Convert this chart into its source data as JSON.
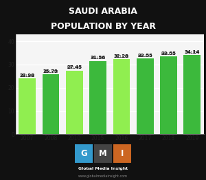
{
  "title_line1": "SAUDI ARABIA",
  "title_line2": "POPULATION BY YEAR",
  "categories": [
    "2007",
    "2008",
    "2010",
    "2015",
    "2016",
    "2017",
    "2018",
    "2019"
  ],
  "values": [
    23.98,
    25.79,
    27.45,
    31.56,
    32.28,
    32.55,
    33.55,
    34.14
  ],
  "value_labels": [
    "23.98",
    "25.79",
    "27.45",
    "31.56",
    "32.28",
    "32.55",
    "33.55",
    "34.14"
  ],
  "bar_colors": [
    "#90EE50",
    "#3CB93C",
    "#90EE50",
    "#3CB93C",
    "#90EE50",
    "#3CB93C",
    "#3CB93C",
    "#3CB93C"
  ],
  "title_bg_color": "#0d3320",
  "title_text_color": "#ffffff",
  "chart_bg_color": "#f5f5f5",
  "footer_bg_color": "#111111",
  "gmi_g_color": "#3399CC",
  "gmi_m_color": "#444444",
  "gmi_i_color": "#CC6622",
  "ylim": [
    0,
    43
  ],
  "yticks": [
    0,
    10,
    20,
    30,
    40
  ],
  "title_fontsize": 9.0,
  "label_fontsize": 5.0,
  "million_fontsize": 3.8,
  "tick_fontsize": 5.5
}
